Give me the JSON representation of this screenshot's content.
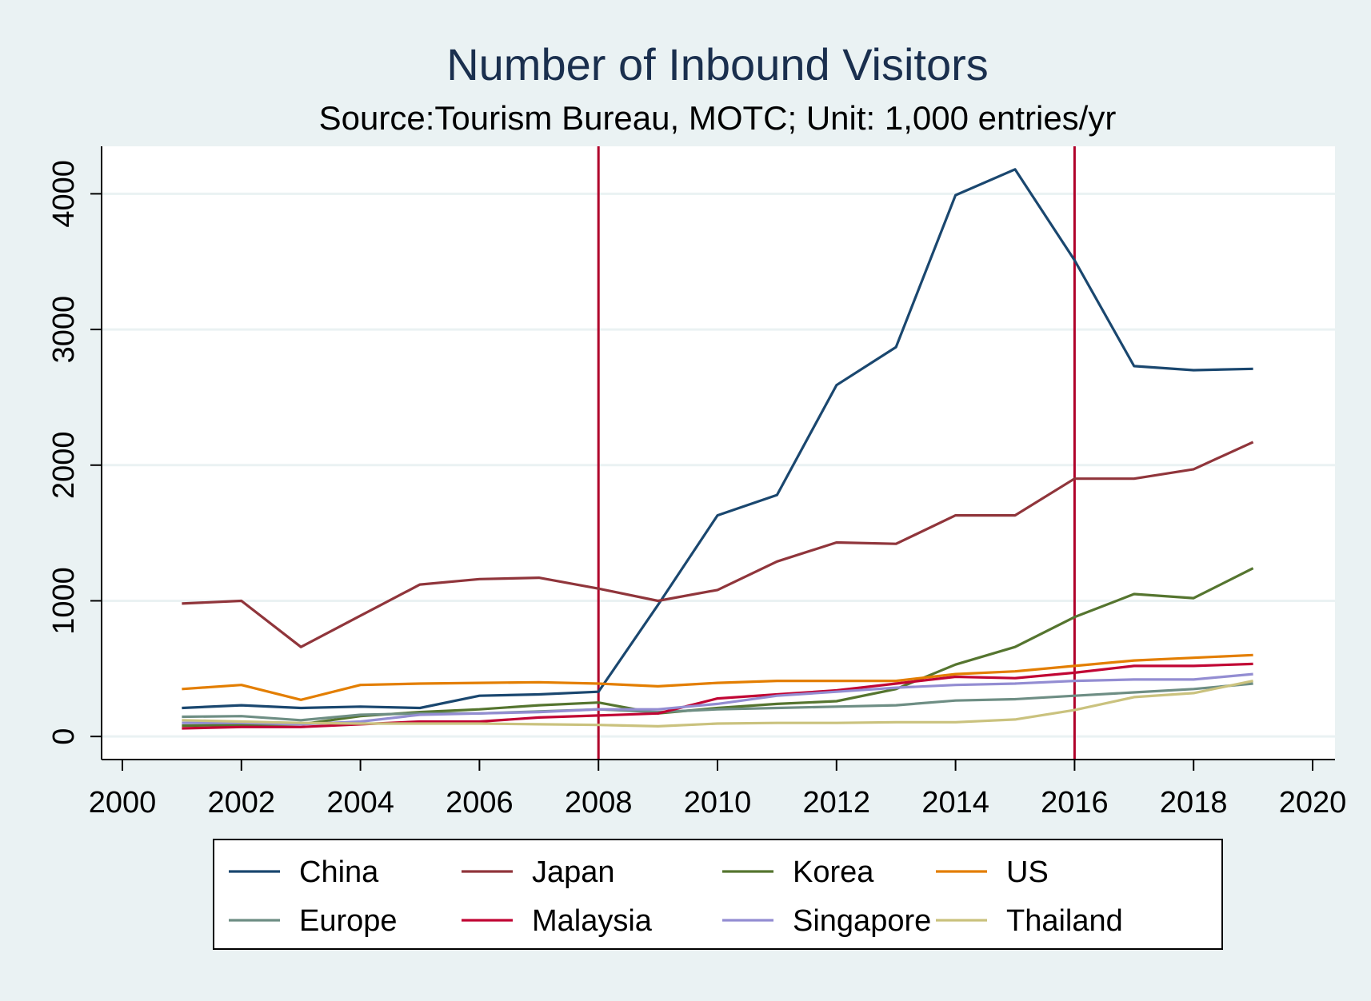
{
  "colors": {
    "background": "#eaf2f3",
    "plot_background": "#ffffff",
    "gridline": "#eaf2f3",
    "axis": "#000000",
    "title": "#1a2f4e",
    "reference_line": "#b0002a"
  },
  "chart_data": {
    "type": "line",
    "title": "Number of Inbound Visitors",
    "subtitle": "Source:Tourism Bureau, MOTC; Unit: 1,000 entries/yr",
    "xlabel": "",
    "ylabel": "",
    "xlim": [
      2000,
      2020
    ],
    "ylim": [
      -170,
      4350
    ],
    "xticks": [
      2000,
      2002,
      2004,
      2006,
      2008,
      2010,
      2012,
      2014,
      2016,
      2018,
      2020
    ],
    "yticks": [
      0,
      1000,
      2000,
      3000,
      4000
    ],
    "grid": true,
    "reference_lines_x": [
      2008,
      2016
    ],
    "legend_position": "bottom",
    "x": [
      2001,
      2002,
      2003,
      2004,
      2005,
      2006,
      2007,
      2008,
      2009,
      2010,
      2011,
      2012,
      2013,
      2014,
      2015,
      2016,
      2017,
      2018,
      2019
    ],
    "series": [
      {
        "name": "China",
        "color": "#1a476f",
        "values": [
          210,
          230,
          210,
          220,
          210,
          300,
          310,
          330,
          970,
          1630,
          1780,
          2590,
          2870,
          3990,
          4180,
          3510,
          2730,
          2700,
          2710
        ]
      },
      {
        "name": "Japan",
        "color": "#90353b",
        "values": [
          980,
          1000,
          660,
          890,
          1120,
          1160,
          1170,
          1090,
          1000,
          1080,
          1290,
          1430,
          1420,
          1630,
          1630,
          1900,
          1900,
          1970,
          2170
        ]
      },
      {
        "name": "Korea",
        "color": "#55752f",
        "values": [
          80,
          85,
          90,
          150,
          180,
          200,
          230,
          250,
          170,
          210,
          240,
          260,
          350,
          530,
          660,
          880,
          1050,
          1020,
          1240
        ]
      },
      {
        "name": "US",
        "color": "#e37e00",
        "values": [
          350,
          380,
          270,
          380,
          390,
          395,
          400,
          390,
          370,
          395,
          410,
          410,
          410,
          460,
          480,
          520,
          560,
          580,
          600
        ]
      },
      {
        "name": "Europe",
        "color": "#6e8e84",
        "values": [
          145,
          150,
          120,
          160,
          170,
          170,
          185,
          200,
          180,
          200,
          210,
          220,
          230,
          265,
          275,
          300,
          325,
          350,
          390
        ]
      },
      {
        "name": "Malaysia",
        "color": "#c10534",
        "values": [
          60,
          70,
          70,
          90,
          110,
          110,
          140,
          155,
          170,
          280,
          310,
          340,
          390,
          440,
          430,
          470,
          520,
          520,
          535
        ]
      },
      {
        "name": "Singapore",
        "color": "#938dd2",
        "values": [
          100,
          100,
          90,
          110,
          160,
          170,
          180,
          200,
          200,
          240,
          300,
          330,
          360,
          380,
          390,
          410,
          420,
          420,
          460
        ]
      },
      {
        "name": "Thailand",
        "color": "#cac27e",
        "values": [
          120,
          110,
          100,
          95,
          95,
          95,
          90,
          85,
          75,
          95,
          100,
          100,
          105,
          105,
          125,
          195,
          290,
          320,
          410
        ]
      }
    ]
  }
}
